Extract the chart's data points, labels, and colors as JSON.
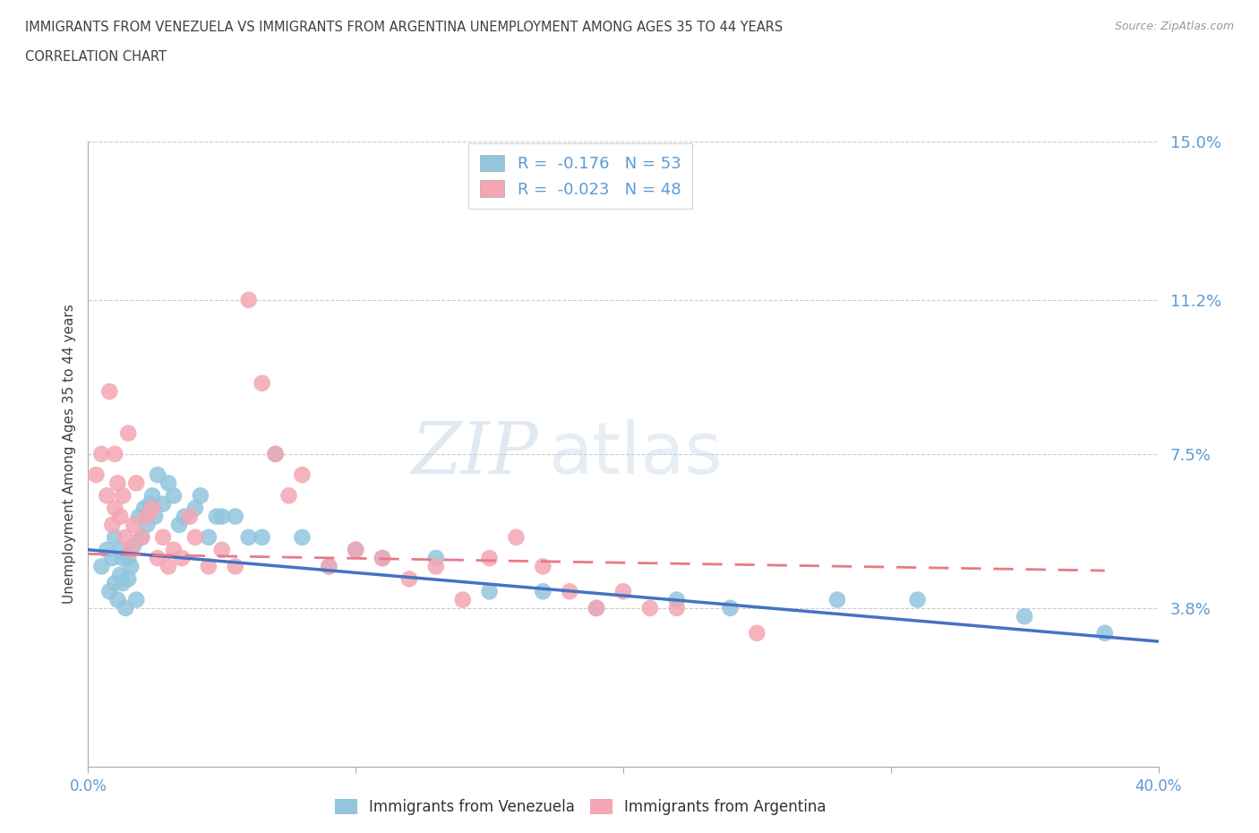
{
  "title_line1": "IMMIGRANTS FROM VENEZUELA VS IMMIGRANTS FROM ARGENTINA UNEMPLOYMENT AMONG AGES 35 TO 44 YEARS",
  "title_line2": "CORRELATION CHART",
  "source_text": "Source: ZipAtlas.com",
  "ylabel": "Unemployment Among Ages 35 to 44 years",
  "xlim": [
    0.0,
    0.4
  ],
  "ylim": [
    0.0,
    0.15
  ],
  "yticks": [
    0.038,
    0.075,
    0.112,
    0.15
  ],
  "ytick_labels": [
    "3.8%",
    "7.5%",
    "11.2%",
    "15.0%"
  ],
  "xticks": [
    0.0,
    0.1,
    0.2,
    0.3,
    0.4
  ],
  "xtick_labels": [
    "0.0%",
    "",
    "",
    "",
    "40.0%"
  ],
  "venezuela_color": "#92C5DE",
  "argentina_color": "#F4A6B2",
  "venezuela_line_color": "#4472C4",
  "argentina_line_color": "#E87988",
  "venezuela_R": -0.176,
  "venezuela_N": 53,
  "argentina_R": -0.023,
  "argentina_N": 48,
  "watermark_zip": "ZIP",
  "watermark_atlas": "atlas",
  "venezuela_scatter_x": [
    0.005,
    0.007,
    0.008,
    0.009,
    0.01,
    0.01,
    0.011,
    0.012,
    0.012,
    0.013,
    0.013,
    0.014,
    0.015,
    0.015,
    0.016,
    0.017,
    0.018,
    0.019,
    0.02,
    0.021,
    0.022,
    0.023,
    0.024,
    0.025,
    0.026,
    0.028,
    0.03,
    0.032,
    0.034,
    0.036,
    0.04,
    0.042,
    0.045,
    0.048,
    0.05,
    0.055,
    0.06,
    0.065,
    0.07,
    0.08,
    0.09,
    0.1,
    0.11,
    0.13,
    0.15,
    0.17,
    0.19,
    0.22,
    0.24,
    0.28,
    0.31,
    0.35,
    0.38
  ],
  "venezuela_scatter_y": [
    0.048,
    0.052,
    0.042,
    0.05,
    0.044,
    0.055,
    0.04,
    0.046,
    0.052,
    0.05,
    0.044,
    0.038,
    0.05,
    0.045,
    0.048,
    0.053,
    0.04,
    0.06,
    0.055,
    0.062,
    0.058,
    0.063,
    0.065,
    0.06,
    0.07,
    0.063,
    0.068,
    0.065,
    0.058,
    0.06,
    0.062,
    0.065,
    0.055,
    0.06,
    0.06,
    0.06,
    0.055,
    0.055,
    0.075,
    0.055,
    0.048,
    0.052,
    0.05,
    0.05,
    0.042,
    0.042,
    0.038,
    0.04,
    0.038,
    0.04,
    0.04,
    0.036,
    0.032
  ],
  "argentina_scatter_x": [
    0.003,
    0.005,
    0.007,
    0.008,
    0.009,
    0.01,
    0.01,
    0.011,
    0.012,
    0.013,
    0.014,
    0.015,
    0.016,
    0.017,
    0.018,
    0.02,
    0.022,
    0.024,
    0.026,
    0.028,
    0.03,
    0.032,
    0.035,
    0.038,
    0.04,
    0.045,
    0.05,
    0.055,
    0.06,
    0.065,
    0.07,
    0.075,
    0.08,
    0.09,
    0.1,
    0.11,
    0.12,
    0.13,
    0.14,
    0.15,
    0.16,
    0.17,
    0.18,
    0.19,
    0.2,
    0.21,
    0.22,
    0.25
  ],
  "argentina_scatter_y": [
    0.07,
    0.075,
    0.065,
    0.09,
    0.058,
    0.062,
    0.075,
    0.068,
    0.06,
    0.065,
    0.055,
    0.08,
    0.052,
    0.058,
    0.068,
    0.055,
    0.06,
    0.062,
    0.05,
    0.055,
    0.048,
    0.052,
    0.05,
    0.06,
    0.055,
    0.048,
    0.052,
    0.048,
    0.112,
    0.092,
    0.075,
    0.065,
    0.07,
    0.048,
    0.052,
    0.05,
    0.045,
    0.048,
    0.04,
    0.05,
    0.055,
    0.048,
    0.042,
    0.038,
    0.042,
    0.038,
    0.038,
    0.032
  ],
  "venezuela_trendline_x": [
    0.0,
    0.4
  ],
  "venezuela_trendline_y": [
    0.052,
    0.03
  ],
  "argentina_trendline_x": [
    0.0,
    0.38
  ],
  "argentina_trendline_y": [
    0.051,
    0.047
  ],
  "grid_color": "#CCCCCC",
  "title_color": "#404040",
  "axis_label_color": "#404040",
  "tick_label_color": "#5B9BD5",
  "legend_R_color": "#5B9BD5",
  "background_color": "#FFFFFF"
}
